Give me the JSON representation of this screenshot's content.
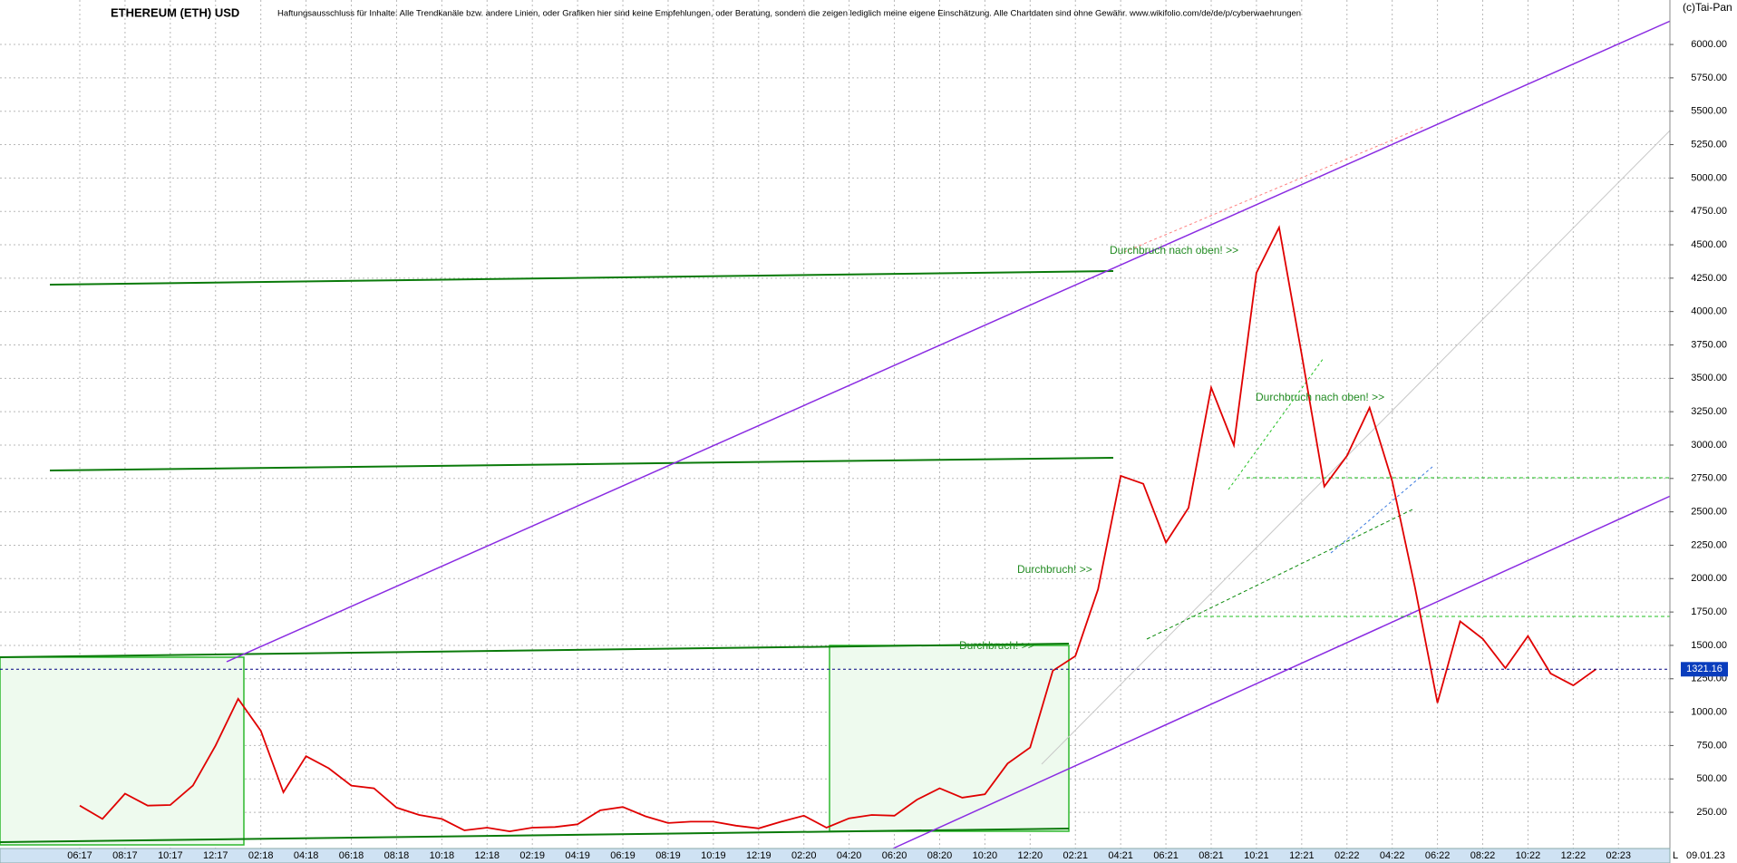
{
  "chart_data": {
    "type": "line",
    "title": "ETHEREUM (ETH) USD",
    "subtitle": "Haftungsausschluss für Inhalte: Alle Trendkanäle bzw. andere Linien, oder Grafiken hier sind keine Empfehlungen, oder Beratung, sondern die zeigen lediglich meine eigene Einschätzung. Alle Chartdaten sind ohne Gewähr. www.wikifolio.com/de/de/p/cyberwaehrungen",
    "source": "(c)Tai-Pan",
    "date": "09.01.23",
    "scale_marker": "L",
    "annotations": [
      "Durchbruch nach oben! >>",
      "Durchbruch! >>",
      "Durchbruch! >>",
      "Durchbruch nach oben! >>"
    ],
    "current_price": 1321.16,
    "color": "#e00000",
    "grid": true,
    "categories": [
      "06:17",
      null,
      "08:17",
      null,
      "10:17",
      null,
      "12:17",
      null,
      "02:18",
      null,
      "04:18",
      null,
      "06:18",
      null,
      "08:18",
      null,
      "10:18",
      null,
      "12:18",
      null,
      "02:19",
      null,
      "04:19",
      null,
      "06:19",
      null,
      "08:19",
      null,
      "10:19",
      null,
      "12:19",
      null,
      "02:20",
      null,
      "04:20",
      null,
      "06:20",
      null,
      "08:20",
      null,
      "10:20",
      null,
      "12:20",
      null,
      "02:21",
      null,
      "04:21",
      null,
      "06:21",
      null,
      "08:21",
      null,
      "10:21",
      null,
      "12:21",
      null,
      "02:22",
      null,
      "04:22",
      null,
      "06:22",
      null,
      "08:22",
      null,
      "10:22",
      null,
      "12:22",
      null,
      "02:23"
    ],
    "values": [
      300,
      200,
      390,
      300,
      305,
      450,
      750,
      1100,
      860,
      400,
      670,
      580,
      450,
      430,
      285,
      230,
      200,
      115,
      135,
      107,
      135,
      140,
      160,
      265,
      290,
      220,
      170,
      180,
      180,
      150,
      130,
      180,
      225,
      135,
      205,
      230,
      225,
      345,
      430,
      360,
      385,
      615,
      735,
      1310,
      1420,
      1920,
      2770,
      2710,
      2270,
      2530,
      3430,
      3000,
      4290,
      4630,
      3680,
      2690,
      2920,
      3280,
      2730,
      1940,
      1070,
      1680,
      1550,
      1330,
      1570,
      1290,
      1200,
      1321,
      null
    ],
    "ylim": [
      -21,
      6333
    ],
    "yticks": [
      {
        "value": 250,
        "label": "250.00"
      },
      {
        "value": 500,
        "label": "500.00"
      },
      {
        "value": 750,
        "label": "750.00"
      },
      {
        "value": 1000,
        "label": "1000.00"
      },
      {
        "value": 1250,
        "label": "1250.00"
      },
      {
        "value": 1500,
        "label": "1500.00"
      },
      {
        "value": 1750,
        "label": "1750.00"
      },
      {
        "value": 2000,
        "label": "2000.00"
      },
      {
        "value": 2250,
        "label": "2250.00"
      },
      {
        "value": 2500,
        "label": "2500.00"
      },
      {
        "value": 2750,
        "label": "2750.00"
      },
      {
        "value": 3000,
        "label": "3000.00"
      },
      {
        "value": 3250,
        "label": "3250.00"
      },
      {
        "value": 3500,
        "label": "3500.00"
      },
      {
        "value": 3750,
        "label": "3750.00"
      },
      {
        "value": 4000,
        "label": "4000.00"
      },
      {
        "value": 4250,
        "label": "4250.00"
      },
      {
        "value": 4500,
        "label": "4500.00"
      },
      {
        "value": 4750,
        "label": "4750.00"
      },
      {
        "value": 5000,
        "label": "5000.00"
      },
      {
        "value": 5250,
        "label": "5250.00"
      },
      {
        "value": 5500,
        "label": "5500.00"
      },
      {
        "value": 5750,
        "label": "5750.00"
      },
      {
        "value": 6000,
        "label": "6000.00"
      }
    ]
  }
}
